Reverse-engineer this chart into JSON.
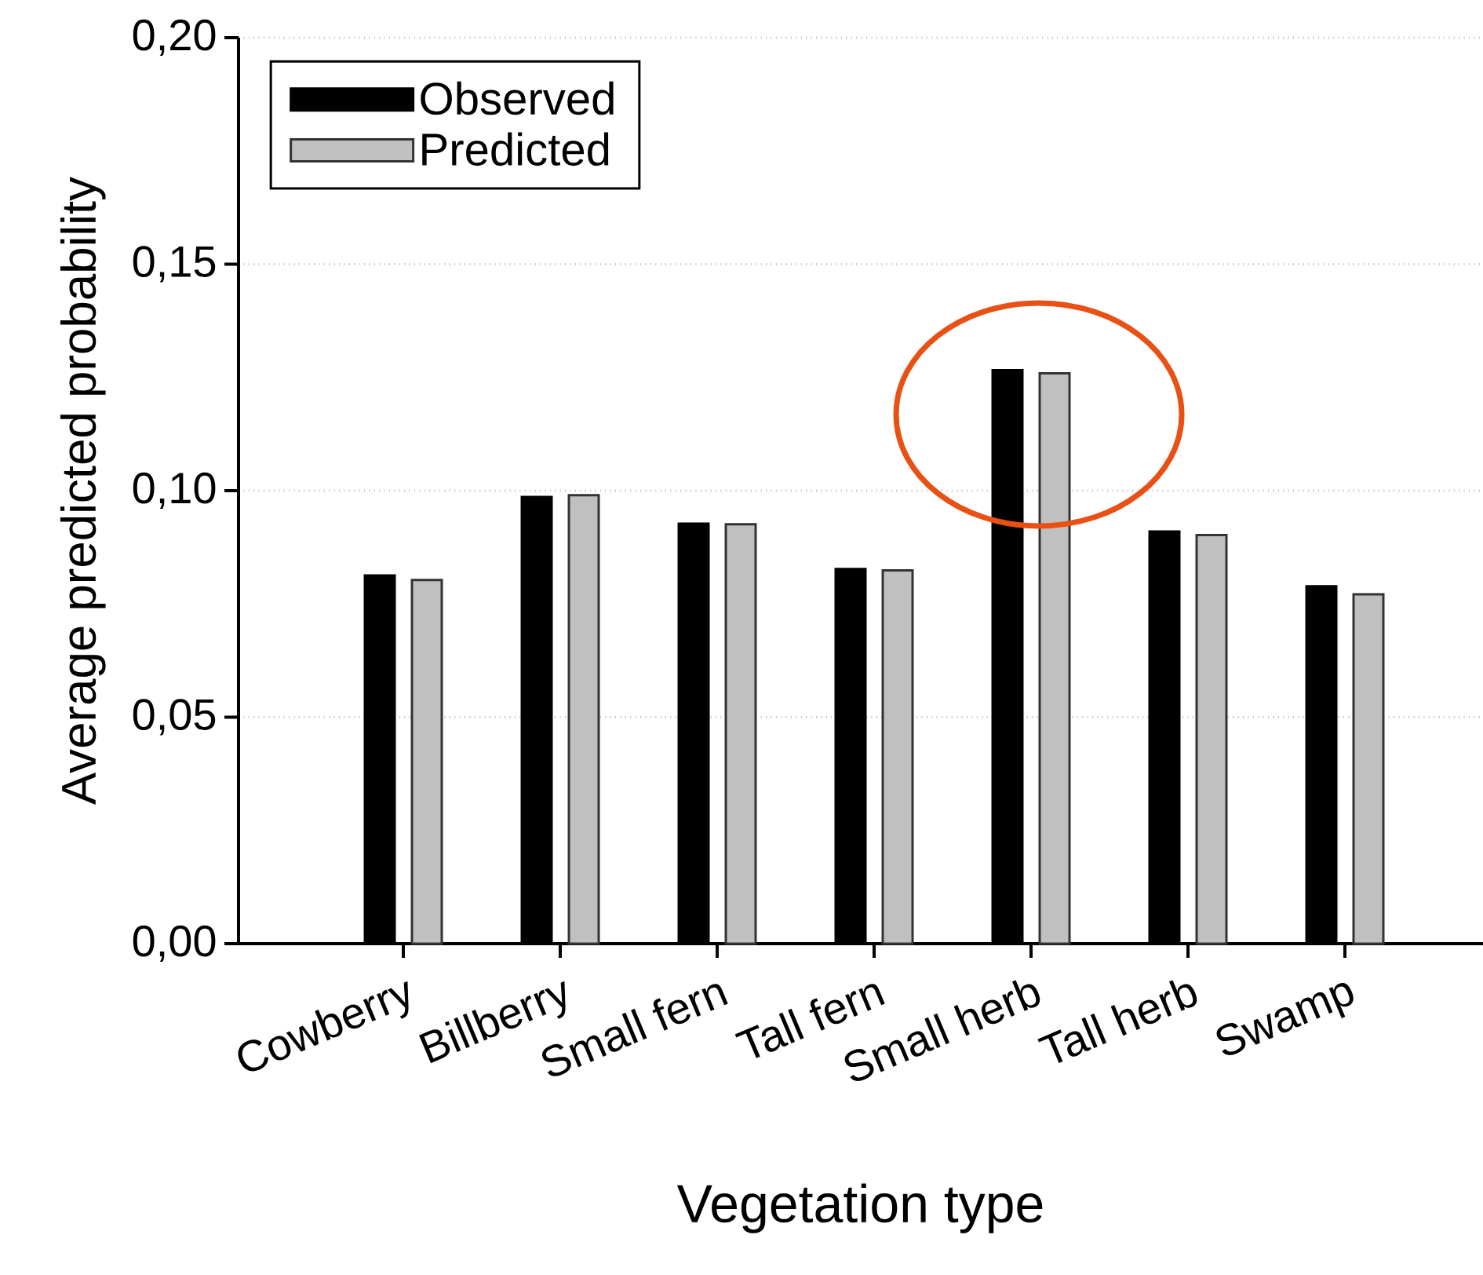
{
  "chart_data": {
    "type": "bar",
    "xlabel": "Vegetation type",
    "ylabel": "Average predicted probability",
    "categories": [
      "Cowberry",
      "Billberry",
      "Small fern",
      "Tall fern",
      "Small herb",
      "Tall herb",
      "Swamp"
    ],
    "series": [
      {
        "name": "Observed",
        "color": "#000000",
        "values": [
          0.0813,
          0.0986,
          0.0927,
          0.0827,
          0.1266,
          0.091,
          0.0789
        ]
      },
      {
        "name": "Predicted",
        "color": "#c0c0c0",
        "values": [
          0.0803,
          0.099,
          0.0926,
          0.0824,
          0.1259,
          0.0902,
          0.0771
        ]
      }
    ],
    "ylim": [
      0,
      0.2
    ],
    "yticks": [
      {
        "value": 0,
        "label": "0,00"
      },
      {
        "value": 0.05,
        "label": "0,05"
      },
      {
        "value": 0.1,
        "label": "0,10"
      },
      {
        "value": 0.15,
        "label": "0,15"
      },
      {
        "value": 0.2,
        "label": "0,20"
      }
    ],
    "grid": "y",
    "legend": "top left"
  }
}
